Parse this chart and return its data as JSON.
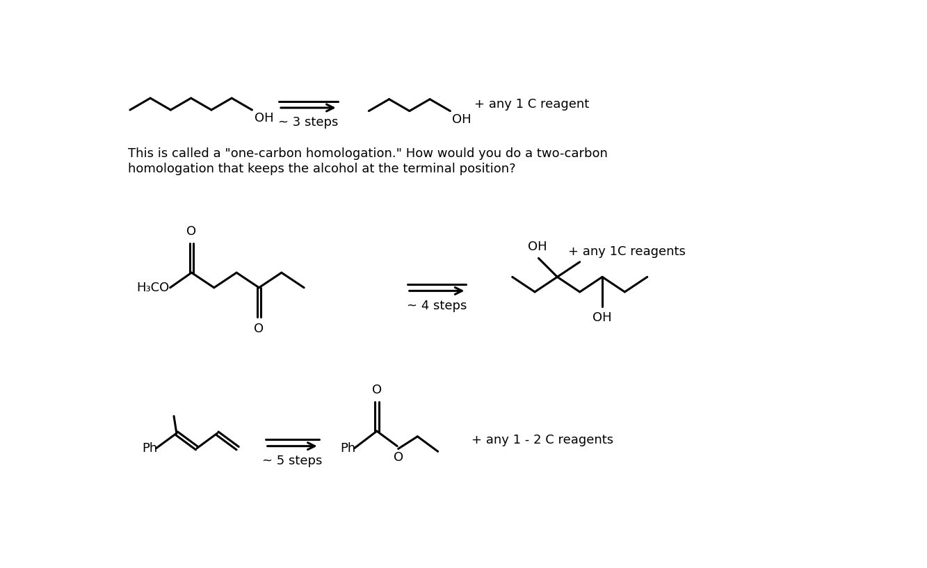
{
  "bg_color": "#ffffff",
  "text_color": "#000000",
  "line_color": "#000000",
  "line_width": 2.2,
  "figsize": [
    13.33,
    8.17
  ],
  "dpi": 100,
  "desc_line1": "This is called a \"one-carbon homologation.\" How would you do a two-carbon",
  "desc_line2": "homologation that keeps the alcohol at the terminal position?",
  "label_3steps": "~ 3 steps",
  "label_4steps": "~ 4 steps",
  "label_5steps": "~ 5 steps",
  "label_1C": "+ any 1 C reagent",
  "label_1C_reagents": "+ any 1C reagents",
  "label_12C": "+ any 1 - 2 C reagents",
  "label_OH": "OH",
  "label_O": "O",
  "label_H3CO": "H₃CO",
  "label_Ph": "Ph"
}
